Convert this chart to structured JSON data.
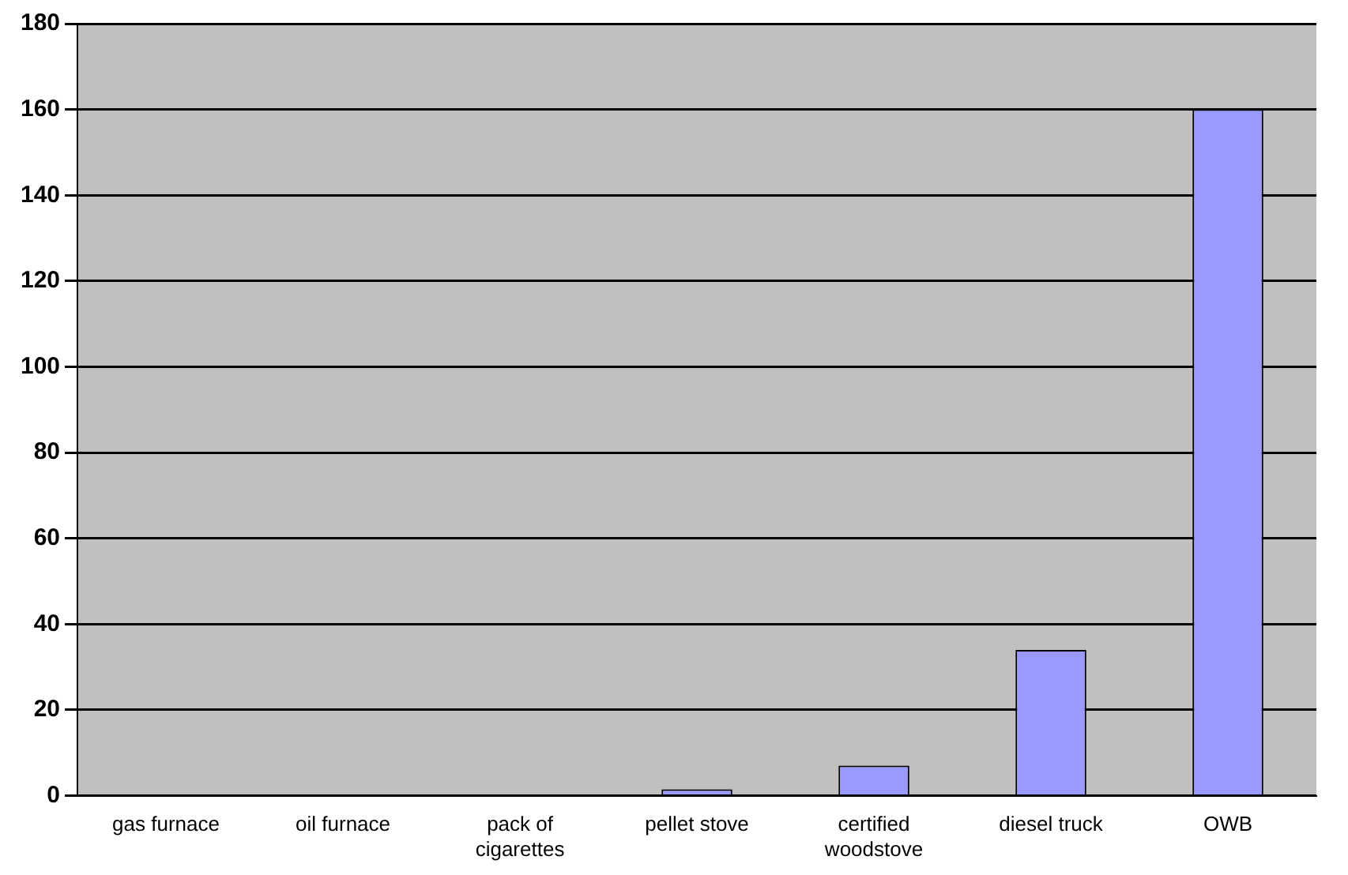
{
  "chart_data": {
    "type": "bar",
    "categories": [
      "gas furnace",
      "oil furnace",
      "pack of cigarettes",
      "pellet stove",
      "certified woodstove",
      "diesel truck",
      "OWB"
    ],
    "values": [
      0,
      0,
      0,
      1.5,
      7,
      34,
      160
    ],
    "color": "#9999ff",
    "ylim": [
      0,
      180
    ],
    "yticks": [
      0,
      20,
      40,
      60,
      80,
      100,
      120,
      140,
      160,
      180
    ],
    "grid": "y",
    "legend": false
  }
}
